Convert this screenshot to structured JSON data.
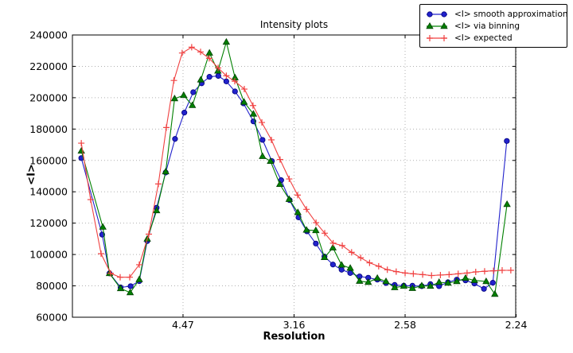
{
  "title": "Intensity plots",
  "legend": {
    "entries": [
      {
        "label": "<I> smooth approximation",
        "series": "smooth"
      },
      {
        "label": "<I> via binning",
        "series": "binning"
      },
      {
        "label": "<I> expected",
        "series": "expected"
      }
    ]
  },
  "chart_data": {
    "type": "line",
    "title": "Intensity plots",
    "xlabel": "Resolution",
    "ylabel": "<I>",
    "grid": true,
    "legend_position": "upper right outside",
    "x_axis": {
      "note": "axis linear in 1/d^2; tick labels show resolution d in Angstrom",
      "range": [
        0.0002,
        0.1998
      ],
      "ticks": [
        {
          "value": 0.05,
          "label": "4.47"
        },
        {
          "value": 0.1,
          "label": "3.16"
        },
        {
          "value": 0.15,
          "label": "2.58"
        },
        {
          "value": 0.2,
          "label": "2.24"
        }
      ]
    },
    "y_axis": {
      "range": [
        60000,
        240000
      ],
      "ticks": [
        {
          "value": 60000,
          "label": "60000"
        },
        {
          "value": 80000,
          "label": "80000"
        },
        {
          "value": 100000,
          "label": "100000"
        },
        {
          "value": 120000,
          "label": "120000"
        },
        {
          "value": 140000,
          "label": "140000"
        },
        {
          "value": 160000,
          "label": "160000"
        },
        {
          "value": 180000,
          "label": "180000"
        },
        {
          "value": 200000,
          "label": "200000"
        },
        {
          "value": 220000,
          "label": "220000"
        },
        {
          "value": 240000,
          "label": "240000"
        }
      ]
    },
    "series": [
      {
        "name": "<I> smooth approximation",
        "marker": "circle",
        "color": "#2222cc",
        "edge": "#00007a",
        "x": [
          0.0042,
          0.0136,
          0.0169,
          0.0219,
          0.0264,
          0.0303,
          0.0339,
          0.0381,
          0.0422,
          0.0464,
          0.0506,
          0.0546,
          0.0584,
          0.0619,
          0.0659,
          0.0695,
          0.0734,
          0.0772,
          0.0817,
          0.0858,
          0.09,
          0.0942,
          0.098,
          0.102,
          0.1058,
          0.1098,
          0.1137,
          0.1175,
          0.1214,
          0.1253,
          0.1295,
          0.1334,
          0.1375,
          0.1414,
          0.1453,
          0.1494,
          0.1533,
          0.1575,
          0.1614,
          0.1653,
          0.1693,
          0.1733,
          0.1772,
          0.1812,
          0.1855,
          0.1895,
          0.1958
        ],
        "y": [
          161500,
          112700,
          88000,
          79000,
          79800,
          83000,
          108600,
          129800,
          152300,
          173700,
          190500,
          203500,
          209200,
          213300,
          213900,
          210400,
          204000,
          196400,
          184900,
          173100,
          159600,
          147400,
          134700,
          123700,
          114800,
          107000,
          98700,
          93600,
          90300,
          88200,
          86000,
          85200,
          84000,
          81800,
          80600,
          80100,
          80100,
          79800,
          81100,
          79800,
          82300,
          84000,
          83500,
          81500,
          78100,
          82000,
          172400
        ]
      },
      {
        "name": "<I> via binning",
        "marker": "triangle",
        "color": "#008000",
        "edge": "#004000",
        "x": [
          0.0042,
          0.0139,
          0.0169,
          0.0219,
          0.0262,
          0.0303,
          0.0339,
          0.0381,
          0.0422,
          0.0462,
          0.0503,
          0.0542,
          0.058,
          0.0619,
          0.0657,
          0.0695,
          0.0734,
          0.0775,
          0.0817,
          0.0858,
          0.0894,
          0.0936,
          0.0978,
          0.1017,
          0.1056,
          0.1098,
          0.1137,
          0.1175,
          0.1214,
          0.1253,
          0.1295,
          0.1334,
          0.1375,
          0.1414,
          0.1453,
          0.1494,
          0.1533,
          0.1575,
          0.1614,
          0.1653,
          0.1693,
          0.1733,
          0.1772,
          0.1812,
          0.1865,
          0.1904,
          0.1959
        ],
        "y": [
          166000,
          117500,
          87900,
          78300,
          75700,
          84000,
          109900,
          128000,
          152800,
          199400,
          201500,
          195100,
          211400,
          228500,
          217000,
          235500,
          212800,
          197200,
          189600,
          162600,
          159500,
          144800,
          135200,
          126800,
          115600,
          115300,
          98100,
          104300,
          93300,
          91300,
          83000,
          82300,
          84900,
          82800,
          78900,
          79800,
          78400,
          80100,
          79800,
          82300,
          81800,
          82800,
          84900,
          83500,
          82800,
          74700,
          132000
        ]
      },
      {
        "name": "<I> expected",
        "marker": "plus",
        "color": "#f04040",
        "edge": "#f04040",
        "x": [
          0.0042,
          0.0084,
          0.0131,
          0.0174,
          0.0217,
          0.026,
          0.0303,
          0.0346,
          0.0389,
          0.0425,
          0.0459,
          0.0496,
          0.0539,
          0.0579,
          0.0618,
          0.0658,
          0.0695,
          0.0733,
          0.0776,
          0.0815,
          0.0855,
          0.0898,
          0.0937,
          0.0978,
          0.1016,
          0.1056,
          0.1099,
          0.1138,
          0.1176,
          0.1217,
          0.1259,
          0.13,
          0.134,
          0.1381,
          0.142,
          0.146,
          0.15,
          0.1537,
          0.1579,
          0.1619,
          0.1659,
          0.1698,
          0.1739,
          0.1779,
          0.1818,
          0.1858,
          0.1898,
          0.1937,
          0.1976
        ],
        "y": [
          171000,
          135000,
          100500,
          88000,
          85500,
          85500,
          93500,
          113000,
          145000,
          181000,
          211000,
          228500,
          232200,
          229200,
          225100,
          219000,
          214000,
          210500,
          205500,
          195000,
          184200,
          173100,
          160600,
          148200,
          137900,
          128800,
          120300,
          113600,
          107200,
          105700,
          101400,
          97900,
          94700,
          92500,
          90300,
          89100,
          88200,
          87700,
          87200,
          86600,
          86900,
          87200,
          87700,
          88200,
          88900,
          89300,
          89600,
          89900,
          89900
        ]
      }
    ]
  },
  "style": {
    "grid_color": "#b0b0b0",
    "axis_color": "#000000",
    "background": "#ffffff"
  }
}
